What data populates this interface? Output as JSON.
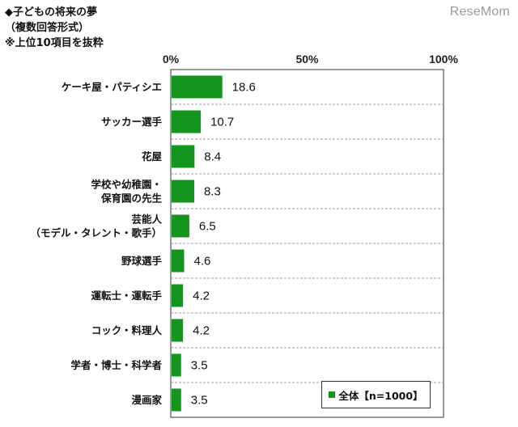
{
  "header": {
    "title_line1": "◆子どもの将来の夢",
    "title_line2": "（複数回答形式）",
    "title_line3": "※上位10項目を抜粋",
    "watermark": "ReseMom"
  },
  "chart_data": {
    "type": "bar",
    "orientation": "horizontal",
    "categories": [
      [
        "ケーキ屋・パティシエ"
      ],
      [
        "サッカー選手"
      ],
      [
        "花屋"
      ],
      [
        "学校や幼稚園・",
        "保育園の先生"
      ],
      [
        "芸能人",
        "（モデル・タレント・歌手）"
      ],
      [
        "野球選手"
      ],
      [
        "運転士・運転手"
      ],
      [
        "コック・料理人"
      ],
      [
        "学者・博士・科学者"
      ],
      [
        "漫画家"
      ]
    ],
    "series": [
      {
        "name": "全体【n=1000】",
        "values": [
          18.6,
          10.7,
          8.4,
          8.3,
          6.5,
          4.6,
          4.2,
          4.2,
          3.5,
          3.5
        ]
      }
    ],
    "value_labels": [
      "18.6",
      "10.7",
      "8.4",
      "8.3",
      "6.5",
      "4.6",
      "4.2",
      "4.2",
      "3.5",
      "3.5"
    ],
    "x_ticks": [
      0,
      50,
      100
    ],
    "x_tick_labels": [
      "0%",
      "50%",
      "100%"
    ],
    "xlim": [
      0,
      100
    ],
    "grid": "dashed horizontal separators",
    "legend_position": "bottom-right",
    "bar_color": "#14961e"
  }
}
